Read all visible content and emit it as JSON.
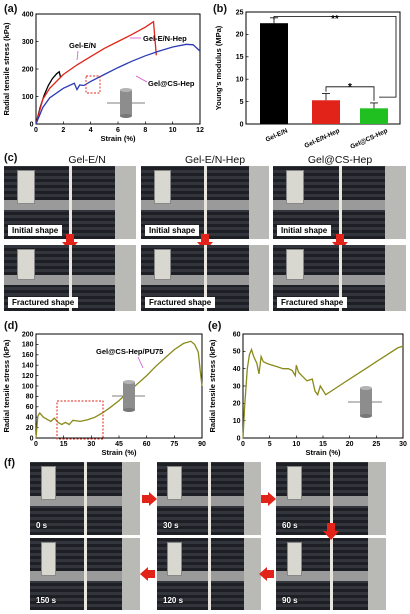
{
  "panels": {
    "a": "(a)",
    "b": "(b)",
    "c": "(c)",
    "d": "(d)",
    "e": "(e)",
    "f": "(f)"
  },
  "colors": {
    "black": "#000000",
    "red": "#e2231a",
    "blue": "#2b3bb3",
    "green": "#20c020",
    "olive": "#8a8a1a",
    "annot_pink": "#cc55cc"
  },
  "chart_data": [
    {
      "id": "a",
      "type": "line",
      "xlabel": "Strain (%)",
      "ylabel": "Radial tensile stress (kPa)",
      "xlim": [
        0,
        12
      ],
      "ylim": [
        0,
        400
      ],
      "xticks": [
        0,
        2,
        4,
        6,
        8,
        10,
        12
      ],
      "yticks": [
        0,
        100,
        200,
        300,
        400
      ],
      "series": [
        {
          "name": "Gel-E/N",
          "color": "#000000",
          "x": [
            0,
            0.3,
            0.6,
            0.9,
            1.2,
            1.5,
            1.7,
            1.8
          ],
          "y": [
            0,
            60,
            105,
            140,
            165,
            182,
            190,
            170
          ]
        },
        {
          "name": "Gel-E/N-Hep",
          "color": "#e2231a",
          "x": [
            0,
            0.5,
            1,
            2,
            3,
            4,
            5,
            6,
            7,
            8,
            8.6,
            8.8
          ],
          "y": [
            0,
            90,
            130,
            180,
            215,
            245,
            275,
            300,
            325,
            352,
            372,
            250
          ]
        },
        {
          "name": "Gel@CS-Hep",
          "color": "#2b3bb3",
          "x": [
            0,
            0.5,
            1,
            2,
            2.8,
            3.0,
            3.2,
            3.5,
            4,
            5,
            6,
            7,
            8,
            9,
            10,
            11,
            11.5,
            12
          ],
          "y": [
            0,
            60,
            95,
            130,
            148,
            125,
            142,
            140,
            155,
            180,
            205,
            228,
            248,
            265,
            280,
            290,
            288,
            265
          ]
        }
      ]
    },
    {
      "id": "b",
      "type": "bar",
      "ylabel": "Young's modulus (MPa)",
      "ylim": [
        0,
        25
      ],
      "yticks": [
        0,
        5,
        10,
        15,
        20,
        25
      ],
      "categories": [
        "Gel-E/N",
        "Gel-E/N-Hep",
        "Gel@CS-Hep"
      ],
      "values": [
        22.5,
        5.3,
        3.5
      ],
      "errors": [
        1.2,
        1.5,
        1.2
      ],
      "bar_colors": [
        "#000000",
        "#e2231a",
        "#20c020"
      ],
      "annotations": [
        "**",
        "*"
      ]
    },
    {
      "id": "d",
      "type": "line",
      "xlabel": "Strain (%)",
      "ylabel": "Radial tensile stress (kPa)",
      "xlim": [
        0,
        90
      ],
      "ylim": [
        0,
        200
      ],
      "xticks": [
        0,
        15,
        30,
        45,
        60,
        75,
        90
      ],
      "yticks": [
        0,
        20,
        40,
        60,
        80,
        100,
        120,
        140,
        160,
        180,
        200
      ],
      "series": [
        {
          "name": "Gel@CS-Hep/PU75",
          "color": "#8a8a1a",
          "x": [
            0,
            1,
            2,
            4,
            6,
            8,
            10,
            12,
            14,
            16,
            18,
            20,
            24,
            28,
            32,
            36,
            40,
            45,
            50,
            55,
            60,
            65,
            70,
            75,
            80,
            84,
            86,
            88,
            89,
            90
          ],
          "y": [
            0,
            42,
            48,
            40,
            36,
            32,
            38,
            30,
            26,
            30,
            26,
            34,
            32,
            35,
            40,
            48,
            58,
            72,
            88,
            104,
            120,
            138,
            154,
            170,
            182,
            186,
            180,
            165,
            130,
            100
          ]
        }
      ]
    },
    {
      "id": "e",
      "type": "line",
      "xlabel": "Strain (%)",
      "ylabel": "Radial tensile stress (kPa)",
      "xlim": [
        0,
        30
      ],
      "ylim": [
        0,
        60
      ],
      "xticks": [
        0,
        5,
        10,
        15,
        20,
        25,
        30
      ],
      "yticks": [
        0,
        10,
        20,
        30,
        40,
        50,
        60
      ],
      "series": [
        {
          "name": "",
          "color": "#8a8a1a",
          "x": [
            0,
            0.3,
            0.8,
            1.2,
            1.6,
            2.0,
            2.6,
            3.0,
            3.4,
            3.8,
            4.5,
            5.5,
            6.5,
            7.5,
            8.5,
            9.2,
            9.8,
            10.0,
            10.4,
            11.0,
            12.0,
            13.0,
            13.5,
            14.0,
            14.5,
            15.5,
            17,
            19,
            21,
            23,
            25,
            27,
            29,
            30
          ],
          "y": [
            0,
            18,
            40,
            48,
            51,
            47,
            43,
            37,
            47,
            44,
            43,
            42,
            41,
            40,
            40,
            39,
            36,
            42,
            38,
            36,
            33,
            34,
            27,
            25,
            30,
            25,
            28,
            32,
            36,
            40,
            44,
            48,
            52,
            53
          ]
        }
      ]
    }
  ],
  "chart_text": {
    "a_gel_en": "Gel-E/N",
    "a_gel_en_hep": "Gel-E/N-Hep",
    "a_gel_cs_hep": "Gel@CS-Hep",
    "d_label": "Gel@CS-Hep/PU75",
    "b_star2": "**",
    "b_star1": "*"
  },
  "panel_c": {
    "titles": [
      "Gel-E/N",
      "Gel-E/N-Hep",
      "Gel@CS-Hep"
    ],
    "initial_caption": "Initial shape",
    "fractured_caption": "Fractured shape"
  },
  "panel_f": {
    "times": [
      "0 s",
      "30 s",
      "60 s",
      "150 s",
      "120 s",
      "90 s"
    ]
  }
}
